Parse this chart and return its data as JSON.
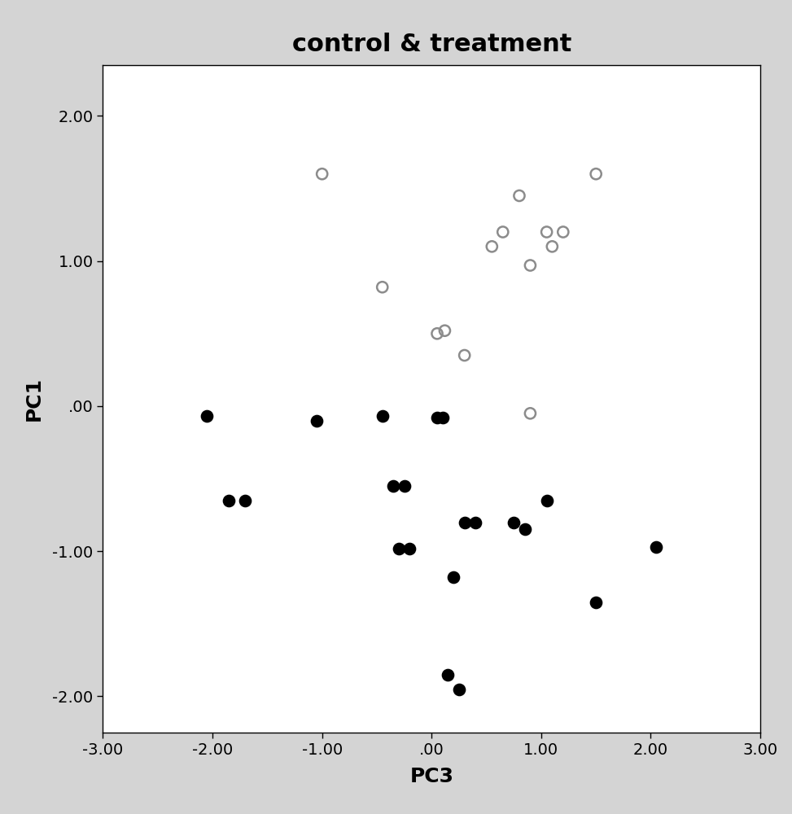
{
  "title": "control & treatment",
  "xlabel": "PC3",
  "ylabel": "PC1",
  "xlim": [
    -3.0,
    3.0
  ],
  "ylim": [
    -2.25,
    2.35
  ],
  "xticks": [
    -3.0,
    -2.0,
    -1.0,
    0.0,
    1.0,
    2.0,
    3.0
  ],
  "yticks": [
    -2.0,
    -1.0,
    0.0,
    1.0,
    2.0
  ],
  "xtick_labels": [
    "-3.00",
    "-2.00",
    "-1.00",
    ".00",
    "1.00",
    "2.00",
    "3.00"
  ],
  "ytick_labels": [
    "-2.00",
    "-1.00",
    ".00",
    "1.00",
    "2.00"
  ],
  "open_circles": [
    [
      -1.0,
      1.6
    ],
    [
      -0.45,
      0.82
    ],
    [
      0.05,
      0.5
    ],
    [
      0.12,
      0.52
    ],
    [
      0.3,
      0.35
    ],
    [
      0.55,
      1.1
    ],
    [
      0.65,
      1.2
    ],
    [
      0.8,
      1.45
    ],
    [
      0.9,
      0.97
    ],
    [
      1.05,
      1.2
    ],
    [
      1.2,
      1.2
    ],
    [
      1.5,
      1.6
    ],
    [
      0.9,
      -0.05
    ],
    [
      1.1,
      1.1
    ]
  ],
  "filled_circles": [
    [
      -2.05,
      -0.07
    ],
    [
      -1.85,
      -0.65
    ],
    [
      -1.7,
      -0.65
    ],
    [
      -1.05,
      -0.1
    ],
    [
      -0.45,
      -0.07
    ],
    [
      -0.35,
      -0.55
    ],
    [
      -0.25,
      -0.55
    ],
    [
      -0.3,
      -0.98
    ],
    [
      -0.2,
      -0.98
    ],
    [
      0.05,
      -0.08
    ],
    [
      0.1,
      -0.08
    ],
    [
      0.2,
      -1.18
    ],
    [
      0.3,
      -0.8
    ],
    [
      0.4,
      -0.8
    ],
    [
      0.15,
      -1.85
    ],
    [
      0.25,
      -1.95
    ],
    [
      0.75,
      -0.8
    ],
    [
      0.85,
      -0.85
    ],
    [
      1.05,
      -0.65
    ],
    [
      1.5,
      -1.35
    ],
    [
      2.05,
      -0.97
    ]
  ],
  "background_color": "#d4d4d4",
  "plot_bg_color": "#ffffff",
  "open_circle_color": "#8c8c8c",
  "filled_circle_color": "#000000",
  "title_fontsize": 22,
  "label_fontsize": 18,
  "tick_fontsize": 14,
  "marker_size": 90,
  "marker_linewidth": 1.8
}
